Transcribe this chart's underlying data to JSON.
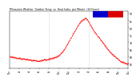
{
  "title": "Milwaukee Weather  Outdoor Temp  vs  Heat Index  per Minute  (24 Hours)",
  "bg_color": "#ffffff",
  "plot_bg": "#ffffff",
  "line_color": "#ff0000",
  "legend_blue": "#0000cc",
  "legend_red": "#dd0000",
  "ylim": [
    52,
    92
  ],
  "yticks": [
    55,
    60,
    65,
    70,
    75,
    80,
    85,
    90
  ],
  "xlim": [
    0,
    1440
  ],
  "vline1": 480,
  "vline2": 960,
  "temp_curve": [
    [
      0,
      60
    ],
    [
      30,
      60
    ],
    [
      60,
      59.5
    ],
    [
      90,
      59
    ],
    [
      120,
      59
    ],
    [
      150,
      58.5
    ],
    [
      180,
      58.5
    ],
    [
      210,
      58
    ],
    [
      240,
      58
    ],
    [
      270,
      57.5
    ],
    [
      300,
      57.5
    ],
    [
      330,
      57
    ],
    [
      360,
      57
    ],
    [
      390,
      57.5
    ],
    [
      420,
      58
    ],
    [
      450,
      58
    ],
    [
      480,
      58.5
    ],
    [
      510,
      59
    ],
    [
      540,
      59.5
    ],
    [
      570,
      60
    ],
    [
      600,
      61
    ],
    [
      630,
      63
    ],
    [
      660,
      65
    ],
    [
      690,
      68
    ],
    [
      720,
      71
    ],
    [
      750,
      74
    ],
    [
      780,
      77
    ],
    [
      810,
      80
    ],
    [
      840,
      83
    ],
    [
      870,
      85
    ],
    [
      900,
      86
    ],
    [
      920,
      87
    ],
    [
      940,
      86
    ],
    [
      960,
      84
    ],
    [
      980,
      82
    ],
    [
      1000,
      80
    ],
    [
      1020,
      78
    ],
    [
      1060,
      75
    ],
    [
      1100,
      72
    ],
    [
      1140,
      69
    ],
    [
      1180,
      66
    ],
    [
      1220,
      63
    ],
    [
      1260,
      61
    ],
    [
      1300,
      59
    ],
    [
      1340,
      57
    ],
    [
      1380,
      56
    ],
    [
      1420,
      55
    ],
    [
      1440,
      55
    ]
  ]
}
